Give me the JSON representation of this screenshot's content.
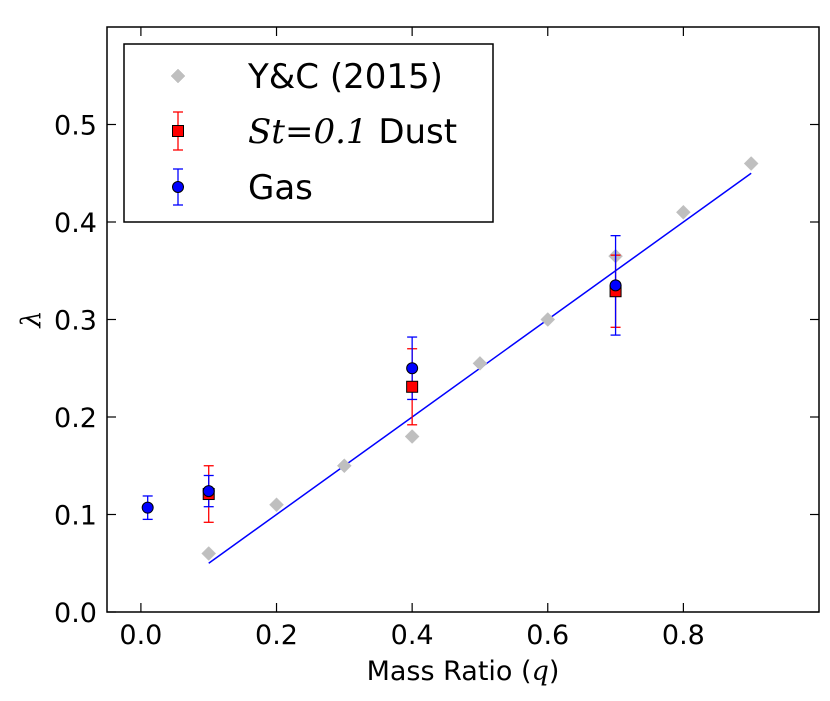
{
  "chart_data": {
    "type": "scatter",
    "xlabel": {
      "prefix": "Mass Ratio (",
      "math": "q",
      "suffix": ")"
    },
    "ylabel": "λ",
    "xlim": [
      -0.05,
      1.0
    ],
    "ylim": [
      0.0,
      0.6
    ],
    "xticks": [
      0.0,
      0.2,
      0.4,
      0.6,
      0.8
    ],
    "xtick_labels": [
      "0.0",
      "0.2",
      "0.4",
      "0.6",
      "0.8"
    ],
    "yticks": [
      0.0,
      0.1,
      0.2,
      0.3,
      0.4,
      0.5
    ],
    "ytick_labels": [
      "0.0",
      "0.1",
      "0.2",
      "0.3",
      "0.4",
      "0.5"
    ],
    "grid": false,
    "legend": {
      "position": "top-left",
      "entries": [
        {
          "series": "yc",
          "label": "Y&C (2015)"
        },
        {
          "series": "dust",
          "label_math": "St=0.1",
          "label_text": " Dust"
        },
        {
          "series": "gas",
          "label": "Gas"
        }
      ]
    },
    "series": [
      {
        "key": "yc",
        "name": "Y&C (2015)",
        "marker": "diamond",
        "color": "#bfbfbf",
        "points": [
          {
            "x": 0.1,
            "y": 0.06
          },
          {
            "x": 0.2,
            "y": 0.11
          },
          {
            "x": 0.3,
            "y": 0.15
          },
          {
            "x": 0.4,
            "y": 0.18
          },
          {
            "x": 0.5,
            "y": 0.255
          },
          {
            "x": 0.6,
            "y": 0.3
          },
          {
            "x": 0.7,
            "y": 0.365
          },
          {
            "x": 0.8,
            "y": 0.41
          },
          {
            "x": 0.9,
            "y": 0.46
          }
        ]
      },
      {
        "key": "dust",
        "name": "St=0.1 Dust",
        "marker": "square",
        "color": "#ff0000",
        "points": [
          {
            "x": 0.1,
            "y": 0.121,
            "err": 0.029
          },
          {
            "x": 0.4,
            "y": 0.231,
            "err": 0.039
          },
          {
            "x": 0.7,
            "y": 0.329,
            "err": 0.037
          }
        ]
      },
      {
        "key": "gas",
        "name": "Gas",
        "marker": "circle",
        "color": "#0000ff",
        "points": [
          {
            "x": 0.01,
            "y": 0.107,
            "err": 0.012
          },
          {
            "x": 0.1,
            "y": 0.124,
            "err": 0.016
          },
          {
            "x": 0.4,
            "y": 0.25,
            "err": 0.032
          },
          {
            "x": 0.7,
            "y": 0.335,
            "err": 0.051
          }
        ]
      }
    ],
    "fit_line": {
      "color": "#0000ff",
      "x": [
        0.1,
        0.9
      ],
      "y": [
        0.05,
        0.45
      ]
    }
  }
}
